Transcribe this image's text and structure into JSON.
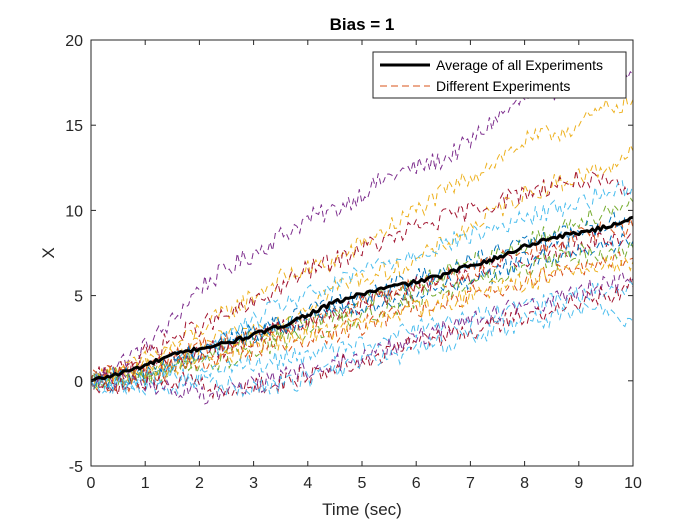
{
  "chart_data": {
    "type": "line",
    "title": "Bias = 1",
    "xlabel": "Time (sec)",
    "ylabel": "X",
    "xlim": [
      0,
      10
    ],
    "ylim": [
      -5,
      20
    ],
    "xticks": [
      "0",
      "1",
      "2",
      "3",
      "4",
      "5",
      "6",
      "7",
      "8",
      "9",
      "10"
    ],
    "yticks": [
      "-5",
      "0",
      "5",
      "10",
      "15",
      "20"
    ],
    "grid": false,
    "legend_position": "top-right",
    "legend": [
      "Average of all Experiments",
      "Different Experiments"
    ],
    "average": {
      "name": "Average of all Experiments",
      "color": "#000000",
      "x": [
        0,
        0.5,
        1,
        1.5,
        2,
        2.5,
        3,
        3.5,
        4,
        4.5,
        5,
        5.5,
        6,
        6.5,
        7,
        7.5,
        8,
        8.5,
        9,
        9.5,
        10
      ],
      "y": [
        0,
        0.4,
        0.9,
        1.5,
        1.9,
        2.2,
        2.7,
        3.2,
        3.9,
        4.6,
        5.1,
        5.5,
        5.8,
        6.2,
        6.8,
        7.2,
        7.9,
        8.4,
        8.7,
        9.0,
        9.6
      ]
    },
    "experiments": {
      "name": "Different Experiments",
      "x": [
        0,
        0.5,
        1,
        1.5,
        2,
        2.5,
        3,
        3.5,
        4,
        4.5,
        5,
        5.5,
        6,
        6.5,
        7,
        7.5,
        8,
        8.5,
        9,
        9.5,
        10
      ],
      "series": [
        {
          "color": "#7E2F8E",
          "y": [
            0,
            1.0,
            2.0,
            3.5,
            5.5,
            6.5,
            7.5,
            8.5,
            9.5,
            10.0,
            11.0,
            12.0,
            12.5,
            13.0,
            14.0,
            15.5,
            16.5,
            17.0,
            17.5,
            17.8,
            18.0
          ]
        },
        {
          "color": "#EDB120",
          "y": [
            0,
            0.5,
            1.2,
            2.0,
            3.0,
            4.0,
            5.0,
            6.0,
            6.5,
            7.0,
            8.0,
            9.0,
            10.0,
            11.0,
            12.0,
            13.0,
            14.0,
            14.5,
            15.0,
            16.0,
            16.5
          ]
        },
        {
          "color": "#EDB120",
          "y": [
            0,
            0.3,
            0.8,
            1.5,
            2.0,
            2.5,
            3.0,
            3.5,
            4.5,
            5.5,
            6.0,
            6.5,
            7.0,
            8.0,
            9.0,
            10.0,
            11.0,
            11.5,
            12.0,
            12.5,
            13.5
          ]
        },
        {
          "color": "#A2142F",
          "y": [
            0,
            0.8,
            1.6,
            2.5,
            3.2,
            3.8,
            4.5,
            5.5,
            6.5,
            7.0,
            7.8,
            8.2,
            9.0,
            9.5,
            10.0,
            10.5,
            11.0,
            11.5,
            11.8,
            11.5,
            11.0
          ]
        },
        {
          "color": "#4DBEEE",
          "y": [
            0,
            -0.4,
            0.2,
            0.8,
            1.5,
            2.5,
            3.5,
            4.5,
            5.0,
            5.5,
            6.5,
            7.0,
            7.5,
            8.0,
            8.5,
            9.0,
            9.5,
            10.0,
            10.5,
            11.0,
            11.5
          ]
        },
        {
          "color": "#77AC30",
          "y": [
            0,
            0.2,
            0.5,
            1.0,
            1.4,
            2.0,
            2.5,
            3.0,
            3.5,
            4.0,
            4.6,
            5.2,
            5.8,
            6.3,
            7.0,
            7.5,
            8.0,
            8.8,
            9.5,
            10.0,
            10.5
          ]
        },
        {
          "color": "#0072BD",
          "y": [
            0,
            -0.3,
            0.3,
            1.0,
            1.6,
            2.2,
            2.7,
            3.3,
            4.0,
            4.5,
            5.0,
            5.5,
            6.0,
            6.5,
            7.0,
            7.5,
            8.0,
            8.3,
            8.8,
            9.2,
            9.5
          ]
        },
        {
          "color": "#D95319",
          "y": [
            0,
            0.5,
            1.0,
            1.5,
            2.0,
            2.3,
            2.6,
            3.0,
            3.5,
            4.0,
            4.5,
            5.0,
            5.5,
            6.0,
            6.5,
            7.0,
            7.5,
            8.0,
            8.5,
            8.8,
            9.0
          ]
        },
        {
          "color": "#A2142F",
          "y": [
            0,
            0.4,
            0.8,
            1.2,
            1.6,
            2.0,
            2.5,
            3.0,
            3.5,
            4.0,
            4.5,
            5.0,
            5.5,
            6.0,
            6.2,
            6.8,
            7.2,
            7.5,
            8.0,
            8.3,
            8.5
          ]
        },
        {
          "color": "#0072BD",
          "y": [
            0,
            0.2,
            0.6,
            1.2,
            1.8,
            2.4,
            2.8,
            3.2,
            3.6,
            4.0,
            4.4,
            4.8,
            5.2,
            5.6,
            6.0,
            6.4,
            7.0,
            7.4,
            7.8,
            8.0,
            8.2
          ]
        },
        {
          "color": "#77AC30",
          "y": [
            0,
            0.1,
            0.3,
            0.6,
            0.9,
            1.3,
            1.8,
            2.3,
            2.8,
            3.3,
            3.8,
            4.3,
            4.8,
            5.3,
            5.8,
            6.2,
            6.6,
            7.0,
            7.4,
            7.6,
            7.8
          ]
        },
        {
          "color": "#D95319",
          "y": [
            0,
            -0.2,
            0.2,
            0.6,
            1.0,
            1.4,
            1.8,
            2.2,
            2.5,
            2.8,
            3.2,
            3.8,
            4.2,
            4.6,
            5.0,
            5.4,
            5.8,
            6.2,
            6.6,
            6.9,
            7.2
          ]
        },
        {
          "color": "#EDB120",
          "y": [
            0,
            0.3,
            0.6,
            0.9,
            1.3,
            1.6,
            2.0,
            2.4,
            2.7,
            3.0,
            3.4,
            3.8,
            4.2,
            4.6,
            5.0,
            5.4,
            5.8,
            6.1,
            6.4,
            6.7,
            7.0
          ]
        },
        {
          "color": "#4DBEEE",
          "y": [
            0,
            -0.5,
            -0.4,
            -0.3,
            0.2,
            0.5,
            1.0,
            1.2,
            1.5,
            1.8,
            2.2,
            2.6,
            3.0,
            3.3,
            3.6,
            3.9,
            4.2,
            4.6,
            5.0,
            5.3,
            5.6
          ]
        },
        {
          "color": "#7E2F8E",
          "y": [
            0,
            0.1,
            -0.2,
            -0.5,
            -0.8,
            -0.6,
            -0.2,
            0.2,
            0.6,
            1.0,
            1.5,
            2.0,
            2.5,
            3.0,
            3.5,
            4.0,
            4.4,
            4.8,
            5.2,
            5.6,
            6.0
          ]
        },
        {
          "color": "#A2142F",
          "y": [
            0,
            -0.3,
            -0.1,
            0.1,
            -0.3,
            -0.6,
            -0.4,
            -0.1,
            0.3,
            0.8,
            1.2,
            1.8,
            2.2,
            2.6,
            3.0,
            3.4,
            3.8,
            4.2,
            4.6,
            5.0,
            5.5
          ]
        },
        {
          "color": "#4DBEEE",
          "y": [
            0,
            -0.2,
            0.2,
            0.5,
            0.2,
            -0.2,
            -0.5,
            -0.3,
            0.1,
            0.6,
            1.0,
            1.4,
            1.8,
            2.2,
            2.6,
            3.0,
            3.4,
            3.8,
            4.2,
            4.0,
            3.5
          ]
        }
      ]
    }
  }
}
